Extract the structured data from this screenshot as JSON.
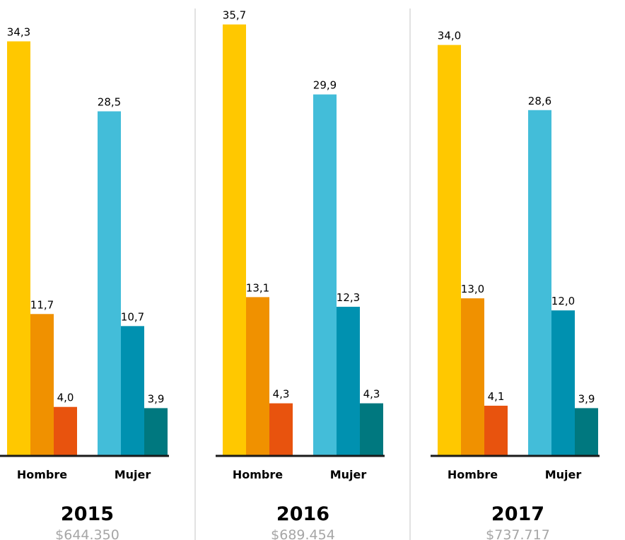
{
  "chart_data": {
    "type": "bar",
    "group_labels": [
      "Hombre",
      "Mujer"
    ],
    "colors": {
      "Hombre": [
        "#FFC800",
        "#F09100",
        "#E8530E"
      ],
      "Mujer": [
        "#43BDD9",
        "#0091B0",
        "#00787F"
      ],
      "baseline": "#1a1a1a",
      "divider": "#e2e2e2",
      "amount_text": "#a6a6a6"
    },
    "panels": [
      {
        "year": "2015",
        "amount": "$644.350",
        "groups": [
          {
            "label": "Hombre",
            "values": [
              34.3,
              11.7,
              4.0
            ],
            "labels": [
              "34,3",
              "11,7",
              "4,0"
            ]
          },
          {
            "label": "Mujer",
            "values": [
              28.5,
              10.7,
              3.9
            ],
            "labels": [
              "28,5",
              "10,7",
              "3,9"
            ]
          }
        ]
      },
      {
        "year": "2016",
        "amount": "$689.454",
        "groups": [
          {
            "label": "Hombre",
            "values": [
              35.7,
              13.1,
              4.3
            ],
            "labels": [
              "35,7",
              "13,1",
              "4,3"
            ]
          },
          {
            "label": "Mujer",
            "values": [
              29.9,
              12.3,
              4.3
            ],
            "labels": [
              "29,9",
              "12,3",
              "4,3"
            ]
          }
        ]
      },
      {
        "year": "2017",
        "amount": "$737.717",
        "groups": [
          {
            "label": "Hombre",
            "values": [
              34.0,
              13.0,
              4.1
            ],
            "labels": [
              "34,0",
              "13,0",
              "4,1"
            ]
          },
          {
            "label": "Mujer",
            "values": [
              28.6,
              12.0,
              3.9
            ],
            "labels": [
              "28,6",
              "12,0",
              "3,9"
            ]
          }
        ]
      }
    ],
    "ylim": [
      0,
      36.5
    ],
    "grid": false
  }
}
